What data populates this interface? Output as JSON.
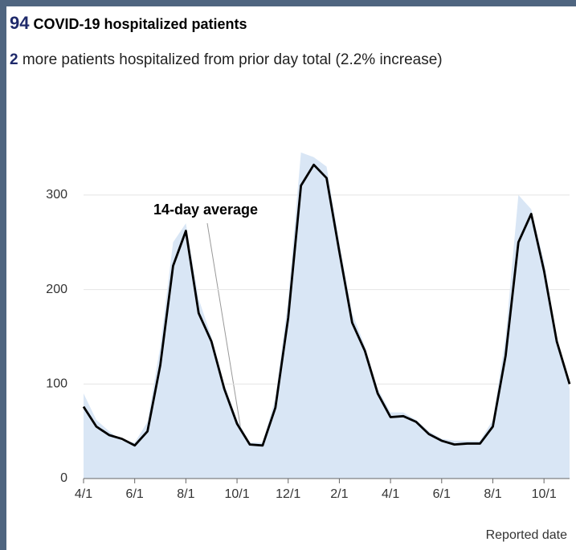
{
  "headline": {
    "count": "94",
    "title": "COVID-19 hospitalized patients",
    "change": "2",
    "change_text": "more patients hospitalized from prior day total (2.2% increase)"
  },
  "chart_data": {
    "type": "area-line",
    "categories": [
      "4/1",
      null,
      null,
      null,
      "6/1",
      null,
      null,
      null,
      "8/1",
      null,
      null,
      null,
      "10/1",
      null,
      null,
      null,
      "12/1",
      null,
      null,
      null,
      "2/1",
      null,
      null,
      null,
      "4/1",
      null,
      null,
      null,
      "6/1",
      null,
      null,
      null,
      "8/1",
      null,
      null,
      null,
      "10/1",
      null,
      null
    ],
    "series": [
      {
        "color": "#d9e6f5",
        "values": [
          90,
          62,
          50,
          40,
          38,
          60,
          140,
          250,
          270,
          190,
          150,
          100,
          62,
          38,
          38,
          85,
          190,
          345,
          340,
          330,
          250,
          175,
          140,
          95,
          70,
          70,
          62,
          50,
          42,
          40,
          40,
          40,
          62,
          150,
          300,
          285,
          230,
          150,
          95
        ]
      },
      {
        "color": "#000000",
        "values": [
          76,
          55,
          46,
          42,
          35,
          50,
          120,
          225,
          262,
          175,
          145,
          95,
          58,
          36,
          35,
          75,
          170,
          310,
          332,
          318,
          240,
          165,
          135,
          90,
          65,
          66,
          60,
          47,
          40,
          36,
          37,
          37,
          55,
          130,
          250,
          280,
          220,
          145,
          100
        ]
      }
    ],
    "annotation": "14-day average",
    "xlabel": "Reported date",
    "ylim": [
      0,
      350
    ],
    "yticks": [
      0,
      100,
      200,
      300
    ],
    "grid": true
  }
}
